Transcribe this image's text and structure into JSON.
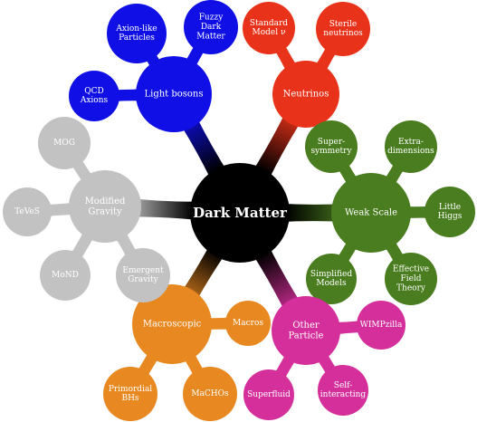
{
  "center": {
    "label": [
      "Dark Matter"
    ],
    "color": "#000000"
  },
  "branches": [
    {
      "key": "light-bosons",
      "label": [
        "Light bosons"
      ],
      "color": "#1010e6",
      "children": [
        {
          "key": "axion-like-particles",
          "label": [
            "Axion-like",
            "Particles"
          ]
        },
        {
          "key": "fuzzy-dark-matter",
          "label": [
            "Fuzzy",
            "Dark",
            "Matter"
          ]
        },
        {
          "key": "qcd-axions",
          "label": [
            "QCD",
            "Axions"
          ]
        }
      ]
    },
    {
      "key": "neutrinos",
      "label": [
        "Neutrinos"
      ],
      "color": "#e8331a",
      "children": [
        {
          "key": "standard-model-nu",
          "label": [
            "Standard",
            "Model ν"
          ]
        },
        {
          "key": "sterile-neutrinos",
          "label": [
            "Sterile",
            "neutrinos"
          ]
        }
      ]
    },
    {
      "key": "weak-scale",
      "label": [
        "Weak Scale"
      ],
      "color": "#4a7d1f",
      "children": [
        {
          "key": "supersymmetry",
          "label": [
            "Super-",
            "symmetry"
          ]
        },
        {
          "key": "extra-dimensions",
          "label": [
            "Extra-",
            "dimensions"
          ]
        },
        {
          "key": "little-higgs",
          "label": [
            "Little",
            "Higgs"
          ]
        },
        {
          "key": "effective-field-theory",
          "label": [
            "Effective",
            "Field",
            "Theory"
          ]
        },
        {
          "key": "simplified-models",
          "label": [
            "Simplified",
            "Models"
          ]
        }
      ]
    },
    {
      "key": "other-particle",
      "label": [
        "Other",
        "Particle"
      ],
      "color": "#d42f9a",
      "children": [
        {
          "key": "wimpzilla",
          "label": [
            "WIMPzilla"
          ]
        },
        {
          "key": "self-interacting",
          "label": [
            "Self-",
            "interacting"
          ]
        },
        {
          "key": "superfluid",
          "label": [
            "Superfluid"
          ]
        }
      ]
    },
    {
      "key": "macroscopic",
      "label": [
        "Macroscopic"
      ],
      "color": "#e88820",
      "children": [
        {
          "key": "macros",
          "label": [
            "Macros"
          ]
        },
        {
          "key": "machos",
          "label": [
            "MaCHOs"
          ]
        },
        {
          "key": "primordial-bhs",
          "label": [
            "Primordial",
            "BHs"
          ]
        }
      ]
    },
    {
      "key": "modified-gravity",
      "label": [
        "Modified",
        "Gravity"
      ],
      "color": "#c2c2c2",
      "children": [
        {
          "key": "mog",
          "label": [
            "MOG"
          ]
        },
        {
          "key": "teves",
          "label": [
            "TeVeS"
          ]
        },
        {
          "key": "mond",
          "label": [
            "MoND"
          ]
        },
        {
          "key": "emergent-gravity",
          "label": [
            "Emergent",
            "Gravity"
          ]
        }
      ]
    }
  ]
}
